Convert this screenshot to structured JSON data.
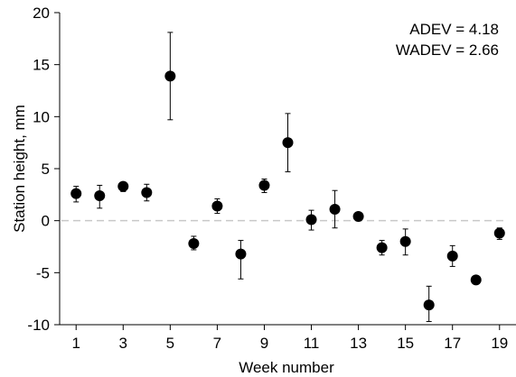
{
  "chart_data": {
    "type": "scatter",
    "title": "",
    "xlabel": "Week number",
    "ylabel": "Station height, mm",
    "xlim": [
      0.3,
      19.7
    ],
    "ylim": [
      -10,
      20
    ],
    "xticks": [
      1,
      3,
      5,
      7,
      9,
      11,
      13,
      15,
      17,
      19
    ],
    "xtick_labels": [
      "1",
      "3",
      "5",
      "7",
      "9",
      "11",
      "13",
      "15",
      "17",
      "19"
    ],
    "yticks": [
      -10,
      -5,
      0,
      5,
      10,
      15,
      20
    ],
    "ytick_labels": [
      "-10",
      "-5",
      "0",
      "5",
      "10",
      "15",
      "20"
    ],
    "grid": false,
    "reference_line": {
      "y": 0,
      "style": "dashed",
      "color": "#c8c8c8"
    },
    "points": [
      {
        "x": 1,
        "y": 2.6,
        "err_low": 1.8,
        "err_high": 3.3
      },
      {
        "x": 2,
        "y": 2.4,
        "err_low": 1.2,
        "err_high": 3.4
      },
      {
        "x": 3,
        "y": 3.3,
        "err_low": 2.8,
        "err_high": 3.7
      },
      {
        "x": 4,
        "y": 2.7,
        "err_low": 1.9,
        "err_high": 3.5
      },
      {
        "x": 5,
        "y": 13.9,
        "err_low": 9.7,
        "err_high": 18.1
      },
      {
        "x": 6,
        "y": -2.2,
        "err_low": -2.8,
        "err_high": -1.5
      },
      {
        "x": 7,
        "y": 1.4,
        "err_low": 0.7,
        "err_high": 2.1
      },
      {
        "x": 8,
        "y": -3.2,
        "err_low": -5.6,
        "err_high": -1.9
      },
      {
        "x": 9,
        "y": 3.4,
        "err_low": 2.7,
        "err_high": 4.0
      },
      {
        "x": 10,
        "y": 7.5,
        "err_low": 4.7,
        "err_high": 10.3
      },
      {
        "x": 11,
        "y": 0.1,
        "err_low": -0.9,
        "err_high": 1.0
      },
      {
        "x": 12,
        "y": 1.1,
        "err_low": -0.7,
        "err_high": 2.9
      },
      {
        "x": 13,
        "y": 0.4,
        "err_low": 0.0,
        "err_high": 0.8
      },
      {
        "x": 14,
        "y": -2.6,
        "err_low": -3.3,
        "err_high": -1.9
      },
      {
        "x": 15,
        "y": -2.0,
        "err_low": -3.3,
        "err_high": -0.8
      },
      {
        "x": 16,
        "y": -8.1,
        "err_low": -9.7,
        "err_high": -6.3
      },
      {
        "x": 17,
        "y": -3.4,
        "err_low": -4.4,
        "err_high": -2.4
      },
      {
        "x": 18,
        "y": -5.7,
        "err_low": -6.0,
        "err_high": -5.3
      },
      {
        "x": 19,
        "y": -1.2,
        "err_low": -1.8,
        "err_high": -0.7
      }
    ],
    "annotations": [
      "ADEV = 4.18",
      "WADEV = 2.66"
    ],
    "colors": {
      "marker": "#000000",
      "axis": "#000000",
      "zero_line": "#c8c8c8"
    }
  }
}
